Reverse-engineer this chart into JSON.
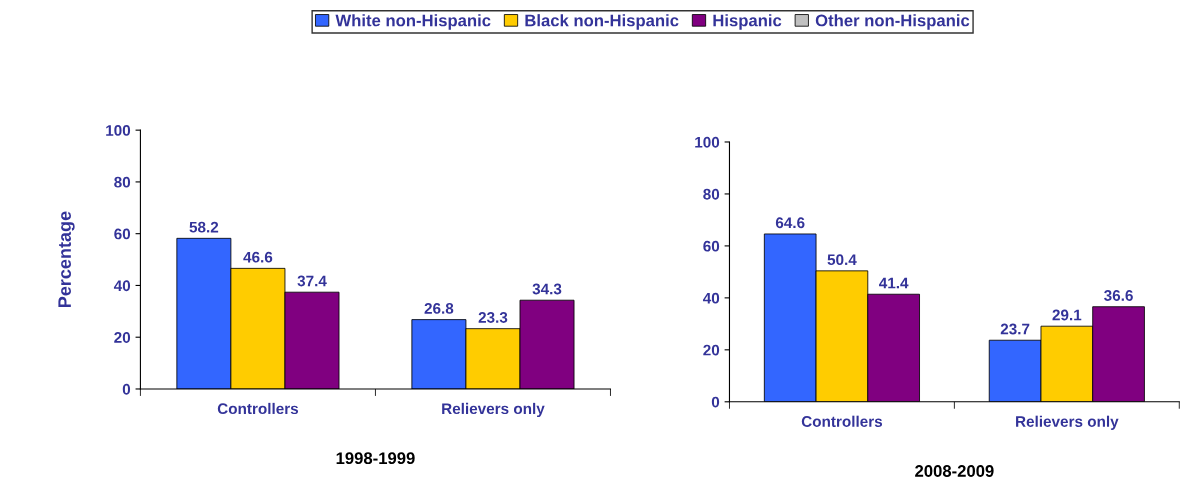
{
  "chart_data": [
    {
      "type": "bar",
      "xlabel": "1998-1999",
      "ylabel": "Percentage",
      "categories": [
        "Controllers",
        "Relievers only"
      ],
      "series": [
        {
          "name": "White non-Hispanic",
          "color": "#3366ff",
          "values": [
            58.2,
            26.8
          ]
        },
        {
          "name": "Black non-Hispanic",
          "color": "#ffcc00",
          "values": [
            46.6,
            23.3
          ]
        },
        {
          "name": "Hispanic",
          "color": "#800080",
          "values": [
            37.4,
            34.3
          ]
        },
        {
          "name": "Other non-Hispanic",
          "color": "#c0c0c0",
          "values": [
            null,
            null
          ]
        }
      ],
      "ylim": [
        0,
        100
      ],
      "yticks": [
        0,
        20,
        40,
        60,
        80,
        100
      ],
      "data_labels": true,
      "legend": "top"
    },
    {
      "type": "bar",
      "xlabel": "2008-2009",
      "categories": [
        "Controllers",
        "Relievers only"
      ],
      "series": [
        {
          "color": "#3366ff",
          "values": [
            64.6,
            23.7
          ]
        },
        {
          "color": "#ffcc00",
          "values": [
            50.4,
            29.1
          ]
        },
        {
          "color": "#800080",
          "values": [
            41.4,
            36.6
          ]
        }
      ],
      "ylim": [
        0,
        100
      ],
      "yticks": [
        0,
        20,
        40,
        60,
        80,
        100
      ],
      "data_labels": true
    }
  ]
}
